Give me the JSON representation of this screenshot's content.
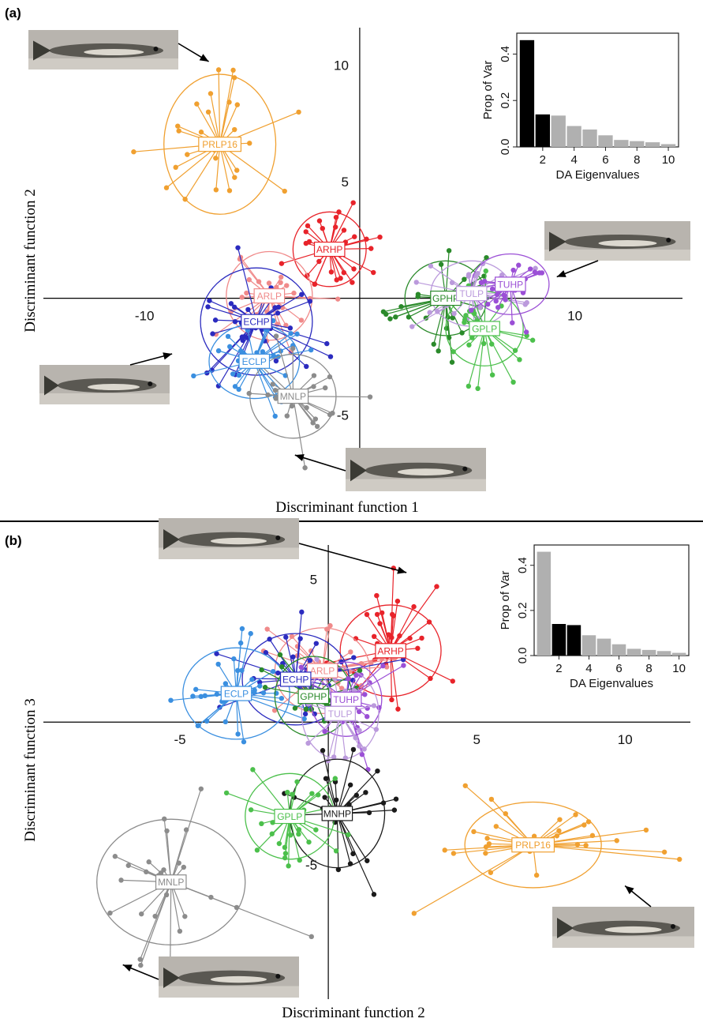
{
  "colors": {
    "ARHP": "#e8232a",
    "ARLP": "#f08a8a",
    "ECHP": "#2b2bbf",
    "ECLP": "#3a8fe0",
    "MNLP": "#8c8c8c",
    "MNHP": "#1a1a1a",
    "GPLP": "#4cc04c",
    "GPHP": "#2a8a2a",
    "TULP": "#bb9adc",
    "TUHP": "#9b4fd6",
    "PRLP16": "#f0a030",
    "inset_selected": "#000000",
    "inset_other": "#b0b0b0"
  },
  "icons": {
    "fish_photo": "guppy-photo-icon",
    "arrow": "arrow-icon"
  },
  "chart_data": [
    {
      "panel": "(a)",
      "type": "scatter",
      "xlabel": "Discriminant function 1",
      "ylabel": "Discriminant function 2",
      "xlim": [
        -14.7,
        15
      ],
      "ylim": [
        -7.7,
        11.6
      ],
      "xticks": [
        -10,
        10
      ],
      "yticks": [
        -5,
        5,
        10
      ],
      "grid": false,
      "groups": [
        {
          "name": "PRLP16",
          "label": true,
          "centroid": [
            -6.5,
            6.6
          ],
          "rx": 2.6,
          "ry": 3.0,
          "n": 26,
          "spread": [
            2.4,
            2.3
          ]
        },
        {
          "name": "ARHP",
          "label": true,
          "centroid": [
            -1.4,
            2.1
          ],
          "rx": 1.7,
          "ry": 1.6,
          "n": 32,
          "spread": [
            1.5,
            1.3
          ]
        },
        {
          "name": "ARLP",
          "label": true,
          "centroid": [
            -4.2,
            0.1
          ],
          "rx": 2.0,
          "ry": 1.9,
          "n": 28,
          "spread": [
            1.7,
            1.5
          ]
        },
        {
          "name": "ECHP",
          "label": true,
          "centroid": [
            -4.8,
            -1.0
          ],
          "rx": 2.6,
          "ry": 2.3,
          "n": 38,
          "spread": [
            2.0,
            1.7
          ]
        },
        {
          "name": "ECLP",
          "label": true,
          "centroid": [
            -4.9,
            -2.7
          ],
          "rx": 2.1,
          "ry": 1.6,
          "n": 30,
          "spread": [
            1.8,
            1.3
          ]
        },
        {
          "name": "MNLP",
          "label": true,
          "centroid": [
            -3.1,
            -4.2
          ],
          "rx": 2.0,
          "ry": 1.8,
          "n": 24,
          "spread": [
            1.6,
            1.6
          ]
        },
        {
          "name": "GPHP",
          "label": true,
          "centroid": [
            4.0,
            0.0
          ],
          "rx": 1.9,
          "ry": 1.6,
          "n": 30,
          "spread": [
            1.6,
            1.3
          ]
        },
        {
          "name": "TULP",
          "label": true,
          "centroid": [
            5.2,
            0.2
          ],
          "rx": 1.9,
          "ry": 1.4,
          "n": 28,
          "spread": [
            1.7,
            1.2
          ]
        },
        {
          "name": "GPLP",
          "label": true,
          "centroid": [
            5.8,
            -1.3
          ],
          "rx": 1.8,
          "ry": 1.6,
          "n": 30,
          "spread": [
            1.6,
            1.4
          ]
        },
        {
          "name": "TUHP",
          "label": true,
          "centroid": [
            7.0,
            0.6
          ],
          "rx": 1.8,
          "ry": 1.3,
          "n": 26,
          "spread": [
            1.5,
            1.2
          ]
        }
      ],
      "inset": {
        "type": "bar",
        "xlabel": "DA Eigenvalues",
        "ylabel": "Prop of Var",
        "xticks": [
          2,
          4,
          6,
          8,
          10
        ],
        "yticks": [
          0.0,
          0.2,
          0.4
        ],
        "ylim": [
          0,
          0.49
        ],
        "values": [
          0.46,
          0.14,
          0.135,
          0.09,
          0.075,
          0.05,
          0.03,
          0.025,
          0.02,
          0.012
        ],
        "highlight": [
          1,
          2
        ]
      }
    },
    {
      "panel": "(b)",
      "type": "scatter",
      "xlabel": "Discriminant function 2",
      "ylabel": "Discriminant function 3",
      "xlim": [
        -9.6,
        12.2
      ],
      "ylim": [
        -9.7,
        6.2
      ],
      "xticks": [
        -5,
        5,
        10
      ],
      "yticks": [
        -5,
        5
      ],
      "grid": false,
      "groups": [
        {
          "name": "ARHP",
          "label": true,
          "centroid": [
            2.1,
            2.5
          ],
          "rx": 1.7,
          "ry": 1.6,
          "n": 34,
          "spread": [
            1.4,
            1.3
          ]
        },
        {
          "name": "ARLP",
          "label": true,
          "centroid": [
            -0.2,
            1.8
          ],
          "rx": 1.6,
          "ry": 1.5,
          "n": 26,
          "spread": [
            1.3,
            1.2
          ]
        },
        {
          "name": "ECHP",
          "label": true,
          "centroid": [
            -1.1,
            1.5
          ],
          "rx": 1.8,
          "ry": 1.6,
          "n": 34,
          "spread": [
            1.5,
            1.3
          ]
        },
        {
          "name": "ECLP",
          "label": true,
          "centroid": [
            -3.1,
            1.0
          ],
          "rx": 1.8,
          "ry": 1.6,
          "n": 32,
          "spread": [
            1.5,
            1.3
          ]
        },
        {
          "name": "GPHP",
          "label": true,
          "centroid": [
            -0.5,
            0.9
          ],
          "rx": 1.3,
          "ry": 1.4,
          "n": 20,
          "spread": [
            1.1,
            1.3
          ]
        },
        {
          "name": "TUHP",
          "label": true,
          "centroid": [
            0.6,
            0.8
          ],
          "rx": 1.2,
          "ry": 1.3,
          "n": 22,
          "spread": [
            1.0,
            1.2
          ]
        },
        {
          "name": "TULP",
          "label": true,
          "centroid": [
            0.4,
            0.3
          ],
          "rx": 1.3,
          "ry": 1.6,
          "n": 22,
          "spread": [
            1.1,
            1.4
          ]
        },
        {
          "name": "MNHP",
          "label": true,
          "centroid": [
            0.3,
            -3.2
          ],
          "rx": 1.6,
          "ry": 1.9,
          "n": 26,
          "spread": [
            1.3,
            1.6
          ]
        },
        {
          "name": "GPLP",
          "label": true,
          "centroid": [
            -1.3,
            -3.3
          ],
          "rx": 1.5,
          "ry": 1.5,
          "n": 30,
          "spread": [
            1.3,
            1.3
          ]
        },
        {
          "name": "MNLP",
          "label": true,
          "centroid": [
            -5.3,
            -5.6
          ],
          "rx": 2.5,
          "ry": 2.2,
          "n": 26,
          "spread": [
            1.9,
            1.8
          ]
        },
        {
          "name": "PRLP16",
          "label": true,
          "centroid": [
            6.9,
            -4.3
          ],
          "rx": 2.3,
          "ry": 1.5,
          "n": 30,
          "spread": [
            2.1,
            1.0
          ]
        }
      ],
      "inset": {
        "type": "bar",
        "xlabel": "DA Eigenvalues",
        "ylabel": "Prop of Var",
        "xticks": [
          2,
          4,
          6,
          8,
          10
        ],
        "yticks": [
          0.0,
          0.2,
          0.4
        ],
        "ylim": [
          0,
          0.49
        ],
        "values": [
          0.46,
          0.14,
          0.135,
          0.09,
          0.075,
          0.05,
          0.03,
          0.025,
          0.02,
          0.012
        ],
        "highlight": [
          2,
          3
        ]
      }
    }
  ]
}
